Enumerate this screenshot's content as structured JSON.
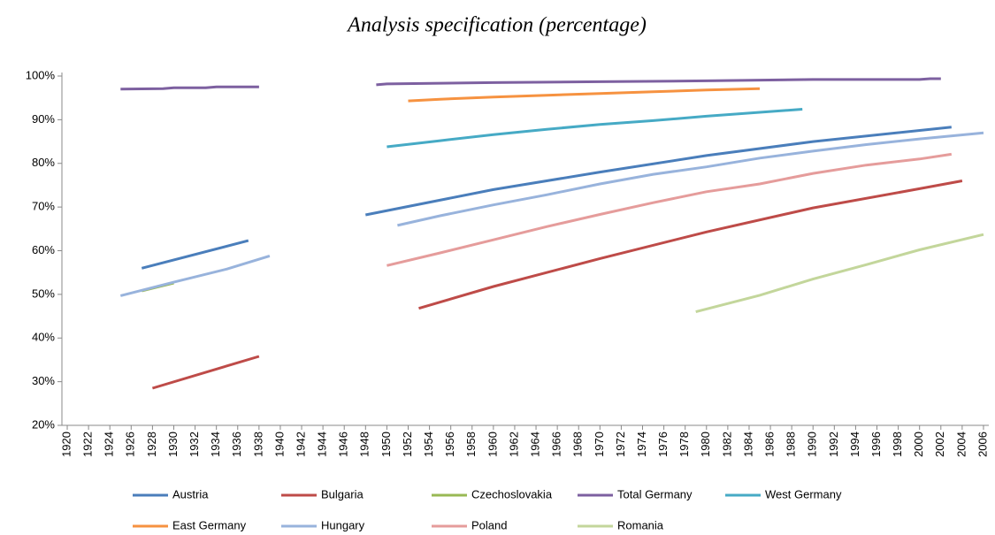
{
  "chart_data": {
    "type": "line",
    "title": "Analysis specification (percentage)",
    "xlim": [
      1919.5,
      2006.5
    ],
    "xticks": [
      1920,
      1922,
      1924,
      1926,
      1928,
      1930,
      1932,
      1934,
      1936,
      1938,
      1940,
      1942,
      1944,
      1946,
      1948,
      1950,
      1952,
      1954,
      1956,
      1958,
      1960,
      1962,
      1964,
      1966,
      1968,
      1970,
      1972,
      1974,
      1976,
      1978,
      1980,
      1982,
      1984,
      1986,
      1988,
      1990,
      1992,
      1994,
      1996,
      1998,
      2000,
      2002,
      2004,
      2006
    ],
    "ylim": [
      20,
      100
    ],
    "yticks": [
      {
        "value": 20,
        "label": "20%"
      },
      {
        "value": 30,
        "label": "30%"
      },
      {
        "value": 40,
        "label": "40%"
      },
      {
        "value": 50,
        "label": "50%"
      },
      {
        "value": 60,
        "label": "60%"
      },
      {
        "value": 70,
        "label": "70%"
      },
      {
        "value": 80,
        "label": "80%"
      },
      {
        "value": 90,
        "label": "90%"
      },
      {
        "value": 100,
        "label": "100%"
      }
    ],
    "series": [
      {
        "name": "Austria",
        "color": "#4a7ebb",
        "x": [
          1927,
          1937,
          null,
          1948,
          1960,
          1970,
          1980,
          1990,
          2003
        ],
        "values": [
          56,
          62.3,
          null,
          68.2,
          74,
          78,
          81.8,
          85,
          88.3
        ]
      },
      {
        "name": "Bulgaria",
        "color": "#be4b48",
        "x": [
          1928,
          1938,
          null,
          1953,
          1960,
          1970,
          1980,
          1990,
          2000,
          2004
        ],
        "values": [
          28.5,
          35.8,
          null,
          46.8,
          51.8,
          58.2,
          64.3,
          69.8,
          74.2,
          76
        ]
      },
      {
        "name": "Czechoslovakia",
        "color": "#98b954",
        "x": [
          1927,
          1930
        ],
        "values": [
          50.8,
          52.6
        ]
      },
      {
        "name": "Total Germany",
        "color": "#7d60a0",
        "x": [
          1925,
          1929,
          1930,
          1933,
          1934,
          1938,
          null,
          1949,
          1950,
          1960,
          1970,
          1980,
          1990,
          2000,
          2001,
          2002
        ],
        "values": [
          97,
          97.1,
          97.3,
          97.3,
          97.5,
          97.5,
          null,
          98,
          98.2,
          98.5,
          98.7,
          98.9,
          99.2,
          99.2,
          99.4,
          99.4
        ]
      },
      {
        "name": "West Germany",
        "color": "#46aac5",
        "x": [
          1950,
          1955,
          1960,
          1965,
          1970,
          1975,
          1980,
          1985,
          1989
        ],
        "values": [
          83.8,
          85.2,
          86.6,
          87.8,
          88.9,
          89.8,
          90.8,
          91.7,
          92.4
        ]
      },
      {
        "name": "East Germany",
        "color": "#f69240",
        "x": [
          1952,
          1955,
          1960,
          1965,
          1970,
          1975,
          1980,
          1985
        ],
        "values": [
          94.3,
          94.7,
          95.2,
          95.6,
          96,
          96.4,
          96.8,
          97.1
        ]
      },
      {
        "name": "Hungary",
        "color": "#98b3dc",
        "x": [
          1925,
          1930,
          1935,
          1939,
          null,
          1951,
          1955,
          1960,
          1965,
          1970,
          1975,
          1980,
          1985,
          1990,
          1995,
          2000,
          2006
        ],
        "values": [
          49.7,
          52.8,
          55.8,
          58.8,
          null,
          65.8,
          68,
          70.5,
          72.8,
          75.3,
          77.5,
          79.2,
          81.2,
          82.8,
          84.3,
          85.6,
          87
        ]
      },
      {
        "name": "Poland",
        "color": "#e59c9b",
        "x": [
          1950,
          1955,
          1960,
          1965,
          1970,
          1975,
          1980,
          1985,
          1990,
          1995,
          2000,
          2003
        ],
        "values": [
          56.6,
          59.5,
          62.5,
          65.5,
          68.3,
          71,
          73.5,
          75.3,
          77.7,
          79.6,
          81,
          82.1
        ]
      },
      {
        "name": "Romania",
        "color": "#c3d69b",
        "x": [
          1979,
          1985,
          1990,
          1995,
          2000,
          2006
        ],
        "values": [
          46,
          49.8,
          53.5,
          56.8,
          60.2,
          63.7
        ]
      }
    ]
  }
}
